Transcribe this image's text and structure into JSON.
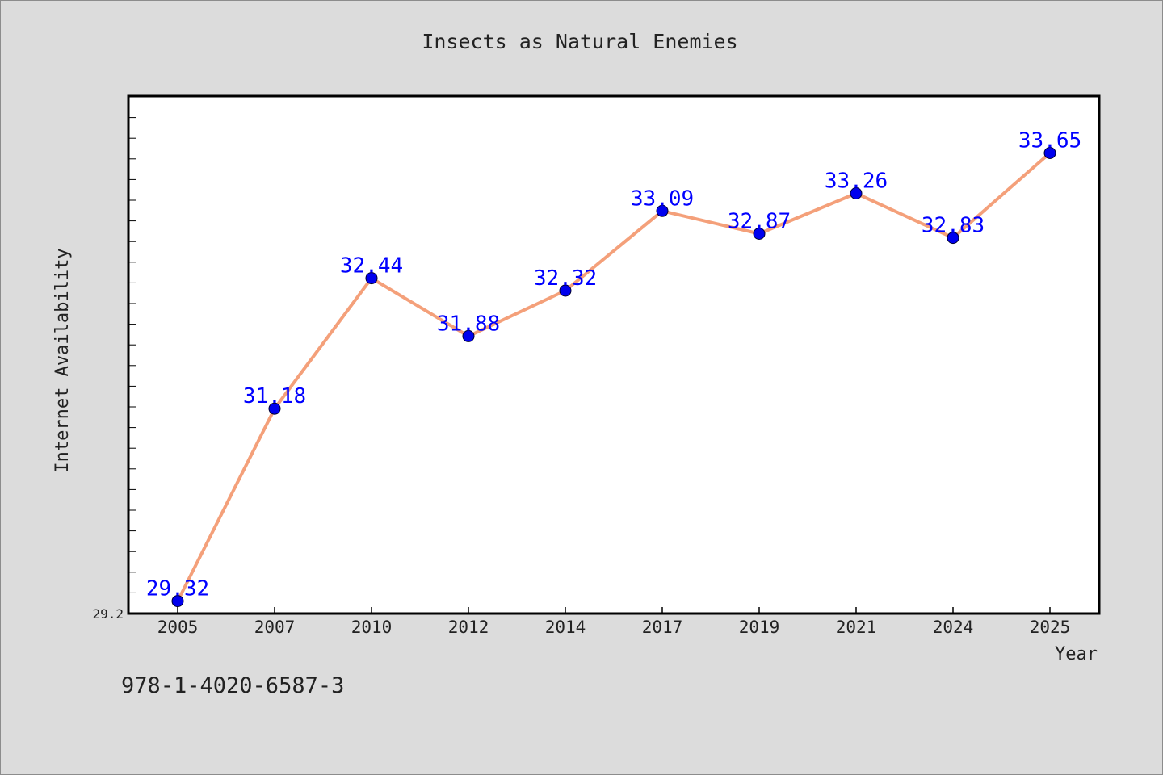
{
  "chart_data": {
    "type": "line",
    "title": "Insects as Natural Enemies",
    "xlabel": "Year",
    "ylabel": "Internet Availability",
    "categories": [
      "2005",
      "2007",
      "2010",
      "2012",
      "2014",
      "2017",
      "2019",
      "2021",
      "2024",
      "2025"
    ],
    "series": [
      {
        "values": [
          29.32,
          31.18,
          32.44,
          31.88,
          32.32,
          33.09,
          32.87,
          33.26,
          32.83,
          33.65
        ],
        "labels": [
          "29.32",
          "31.18",
          "32.44",
          "31.88",
          "32.32",
          "33.09",
          "32.87",
          "33.26",
          "32.83",
          "33.65"
        ],
        "line_color": "#f4a07a",
        "marker_color": "#0000ee",
        "label_color": "#0000ff"
      }
    ],
    "y_tick_labels": [
      "29.2"
    ],
    "ylim": [
      29.2,
      34.2
    ],
    "grid": false,
    "legend": "none"
  },
  "footer": {
    "isbn": "978-1-4020-6587-3"
  }
}
